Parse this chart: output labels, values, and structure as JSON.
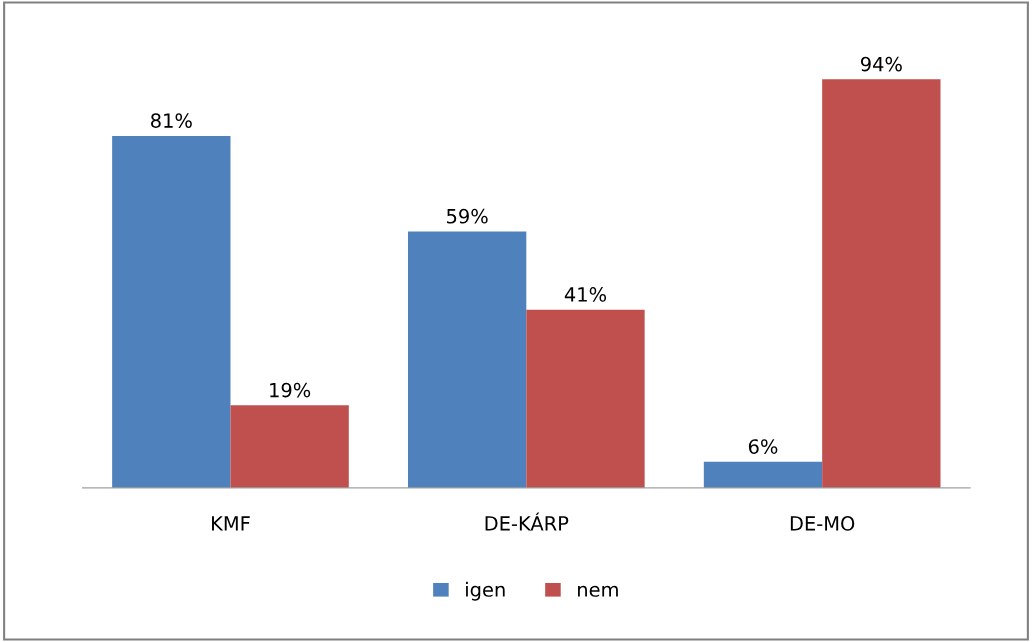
{
  "chart_data": {
    "type": "bar",
    "categories": [
      "KMF",
      "DE-KÁRP",
      "DE-MO"
    ],
    "series": [
      {
        "name": "igen",
        "color": "#4f81bd",
        "values": [
          81,
          59,
          6
        ],
        "value_labels": [
          "81%",
          "59%",
          "6%"
        ]
      },
      {
        "name": "nem",
        "color": "#c0504d",
        "values": [
          19,
          41,
          94
        ],
        "value_labels": [
          "19%",
          "41%",
          "94%"
        ]
      }
    ],
    "legend": "bottom",
    "grid": false
  }
}
